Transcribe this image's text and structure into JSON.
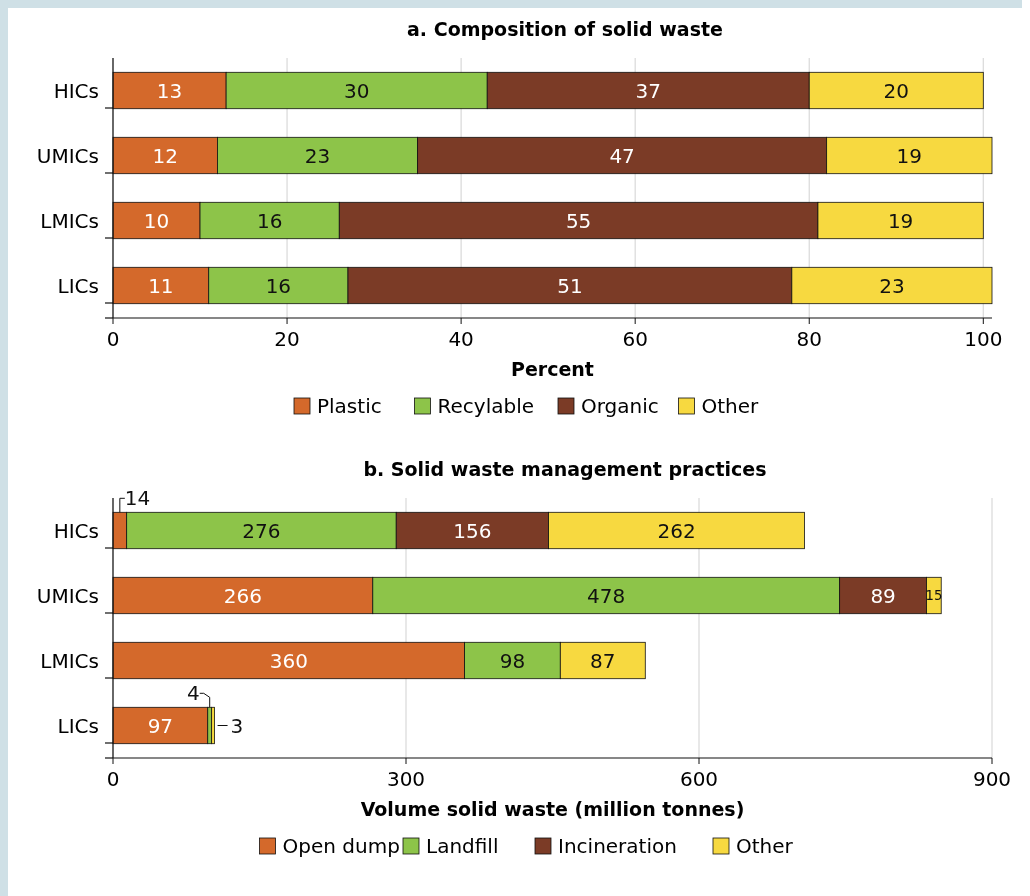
{
  "chart_data": [
    {
      "type": "bar",
      "title": "a. Composition of solid waste",
      "orientation": "horizontal",
      "stacked": true,
      "categories": [
        "HICs",
        "UMICs",
        "LMICs",
        "LICs"
      ],
      "series": [
        {
          "name": "Plastic",
          "color": "#d4692b",
          "values": [
            13,
            12,
            10,
            11
          ]
        },
        {
          "name": "Recylable",
          "color": "#8dc449",
          "values": [
            30,
            23,
            16,
            16
          ]
        },
        {
          "name": "Organic",
          "color": "#7b3b26",
          "values": [
            37,
            47,
            55,
            51
          ]
        },
        {
          "name": "Other",
          "color": "#f7d940",
          "values": [
            20,
            19,
            19,
            23
          ]
        }
      ],
      "xlim": [
        0,
        101
      ],
      "xticks": [
        0,
        20,
        40,
        60,
        80,
        100
      ],
      "xlabel": "Percent",
      "grid": "x",
      "legend": "bottom",
      "data_labels": true
    },
    {
      "type": "bar",
      "title": "b. Solid waste management practices",
      "orientation": "horizontal",
      "stacked": true,
      "categories": [
        "HICs",
        "UMICs",
        "LMICs",
        "LICs"
      ],
      "series": [
        {
          "name": "Open dump",
          "color": "#d4692b",
          "values": [
            14,
            266,
            360,
            97
          ]
        },
        {
          "name": "Landfill",
          "color": "#8dc449",
          "values": [
            276,
            478,
            98,
            4
          ]
        },
        {
          "name": "Incineration",
          "color": "#7b3b26",
          "values": [
            156,
            89,
            null,
            null
          ]
        },
        {
          "name": "Other",
          "color": "#f7d940",
          "values": [
            262,
            15,
            87,
            3
          ]
        }
      ],
      "xlim": [
        0,
        900
      ],
      "xticks": [
        0,
        300,
        600,
        900
      ],
      "xlabel": "Volume solid waste (million tonnes)",
      "grid": "x",
      "legend": "bottom",
      "data_labels": true
    }
  ]
}
